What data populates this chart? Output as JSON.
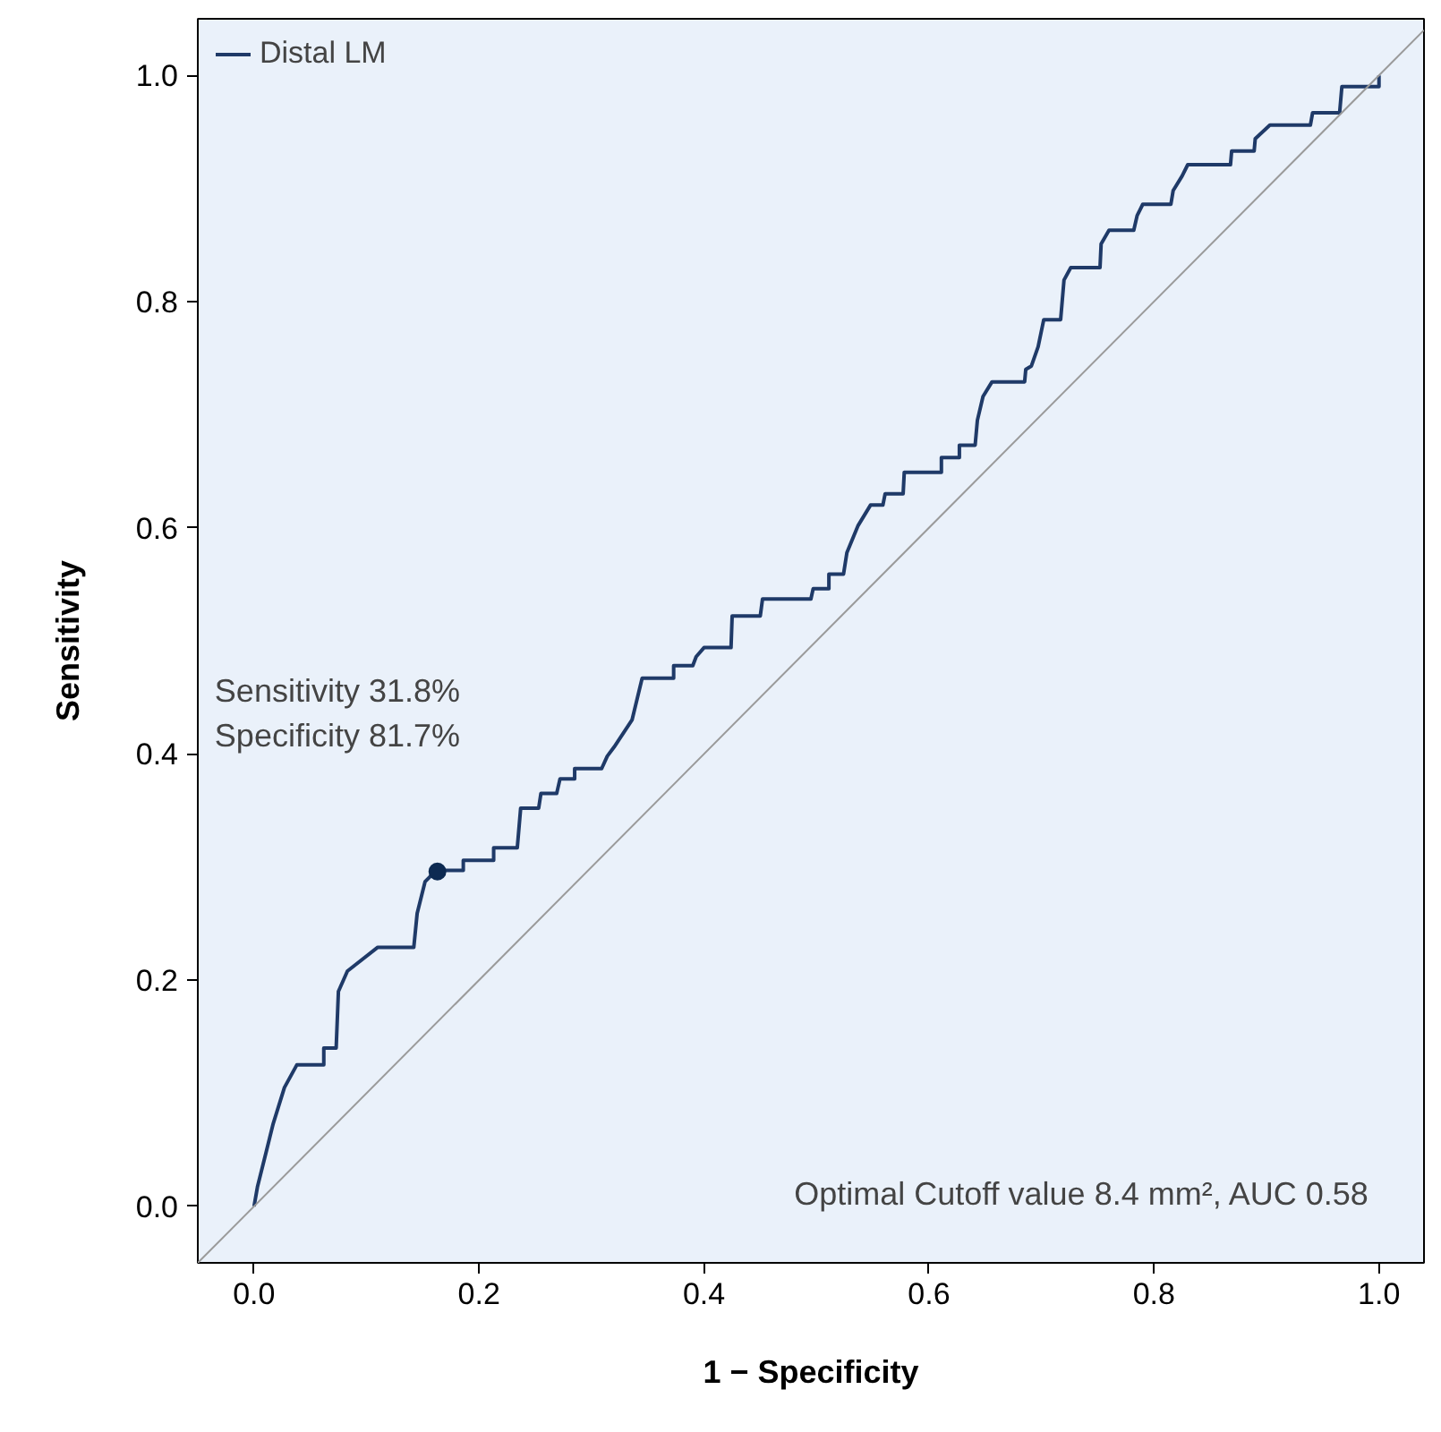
{
  "chart_data": {
    "type": "line",
    "xlabel": "1 − Specificity",
    "ylabel": "Sensitivity",
    "xlim": [
      -0.05,
      1.04
    ],
    "ylim": [
      -0.05,
      1.05
    ],
    "xticks": [
      {
        "value": 0,
        "label": "0.0"
      },
      0.2,
      0.4,
      0.6,
      0.8,
      {
        "value": 1,
        "label": "1.0"
      }
    ],
    "yticks": [
      {
        "value": 0,
        "label": "0.0"
      },
      0.2,
      0.4,
      0.6,
      0.8,
      {
        "value": 1,
        "label": "1.0"
      }
    ],
    "grid": false,
    "legend": "top left",
    "line_style": "solid",
    "marker": "none",
    "series": [
      {
        "name": "Distal LM",
        "color": "#1f3a68",
        "x": [
          0,
          0.003,
          0.011,
          0.017,
          0.027,
          0.038,
          0.062,
          0.062,
          0.073,
          0.075,
          0.083,
          0.11,
          0.142,
          0.145,
          0.152,
          0.162,
          0.186,
          0.186,
          0.213,
          0.213,
          0.234,
          0.237,
          0.253,
          0.255,
          0.269,
          0.272,
          0.285,
          0.285,
          0.309,
          0.314,
          0.32,
          0.336,
          0.345,
          0.373,
          0.373,
          0.39,
          0.393,
          0.4,
          0.424,
          0.425,
          0.45,
          0.452,
          0.495,
          0.497,
          0.511,
          0.511,
          0.524,
          0.527,
          0.537,
          0.548,
          0.559,
          0.561,
          0.577,
          0.578,
          0.611,
          0.611,
          0.627,
          0.627,
          0.641,
          0.643,
          0.648,
          0.656,
          0.685,
          0.686,
          0.691,
          0.697,
          0.702,
          0.717,
          0.72,
          0.726,
          0.752,
          0.753,
          0.76,
          0.782,
          0.785,
          0.79,
          0.815,
          0.817,
          0.825,
          0.83,
          0.868,
          0.869,
          0.889,
          0.89,
          0.903,
          0.939,
          0.941,
          0.965,
          0.967,
          1.0,
          1.0
        ],
        "values": [
          0,
          0.017,
          0.049,
          0.073,
          0.105,
          0.125,
          0.125,
          0.14,
          0.14,
          0.19,
          0.208,
          0.229,
          0.229,
          0.259,
          0.287,
          0.297,
          0.297,
          0.306,
          0.306,
          0.317,
          0.317,
          0.352,
          0.352,
          0.365,
          0.365,
          0.378,
          0.378,
          0.387,
          0.387,
          0.398,
          0.406,
          0.43,
          0.467,
          0.467,
          0.478,
          0.478,
          0.486,
          0.494,
          0.494,
          0.522,
          0.522,
          0.537,
          0.537,
          0.546,
          0.546,
          0.559,
          0.559,
          0.578,
          0.602,
          0.62,
          0.62,
          0.63,
          0.63,
          0.649,
          0.649,
          0.662,
          0.662,
          0.673,
          0.673,
          0.695,
          0.716,
          0.729,
          0.729,
          0.74,
          0.743,
          0.76,
          0.784,
          0.784,
          0.819,
          0.83,
          0.83,
          0.851,
          0.863,
          0.863,
          0.876,
          0.886,
          0.886,
          0.898,
          0.911,
          0.921,
          0.921,
          0.933,
          0.933,
          0.944,
          0.956,
          0.956,
          0.967,
          0.967,
          0.99,
          0.99,
          1.0
        ]
      },
      {
        "color": "#9a9a9a",
        "x": [
          -0.05,
          1.04
        ],
        "values": [
          -0.05,
          1.04
        ]
      },
      {
        "type": "scatter",
        "marker": "circle",
        "color": "#0d2a52",
        "x": [
          0.163
        ],
        "values": [
          0.296
        ]
      }
    ],
    "annotations": [
      "Sensitivity 31.8%",
      "Specificity 81.7%",
      "Optimal Cutoff value 8.4 mm²,  AUC 0.58"
    ]
  }
}
